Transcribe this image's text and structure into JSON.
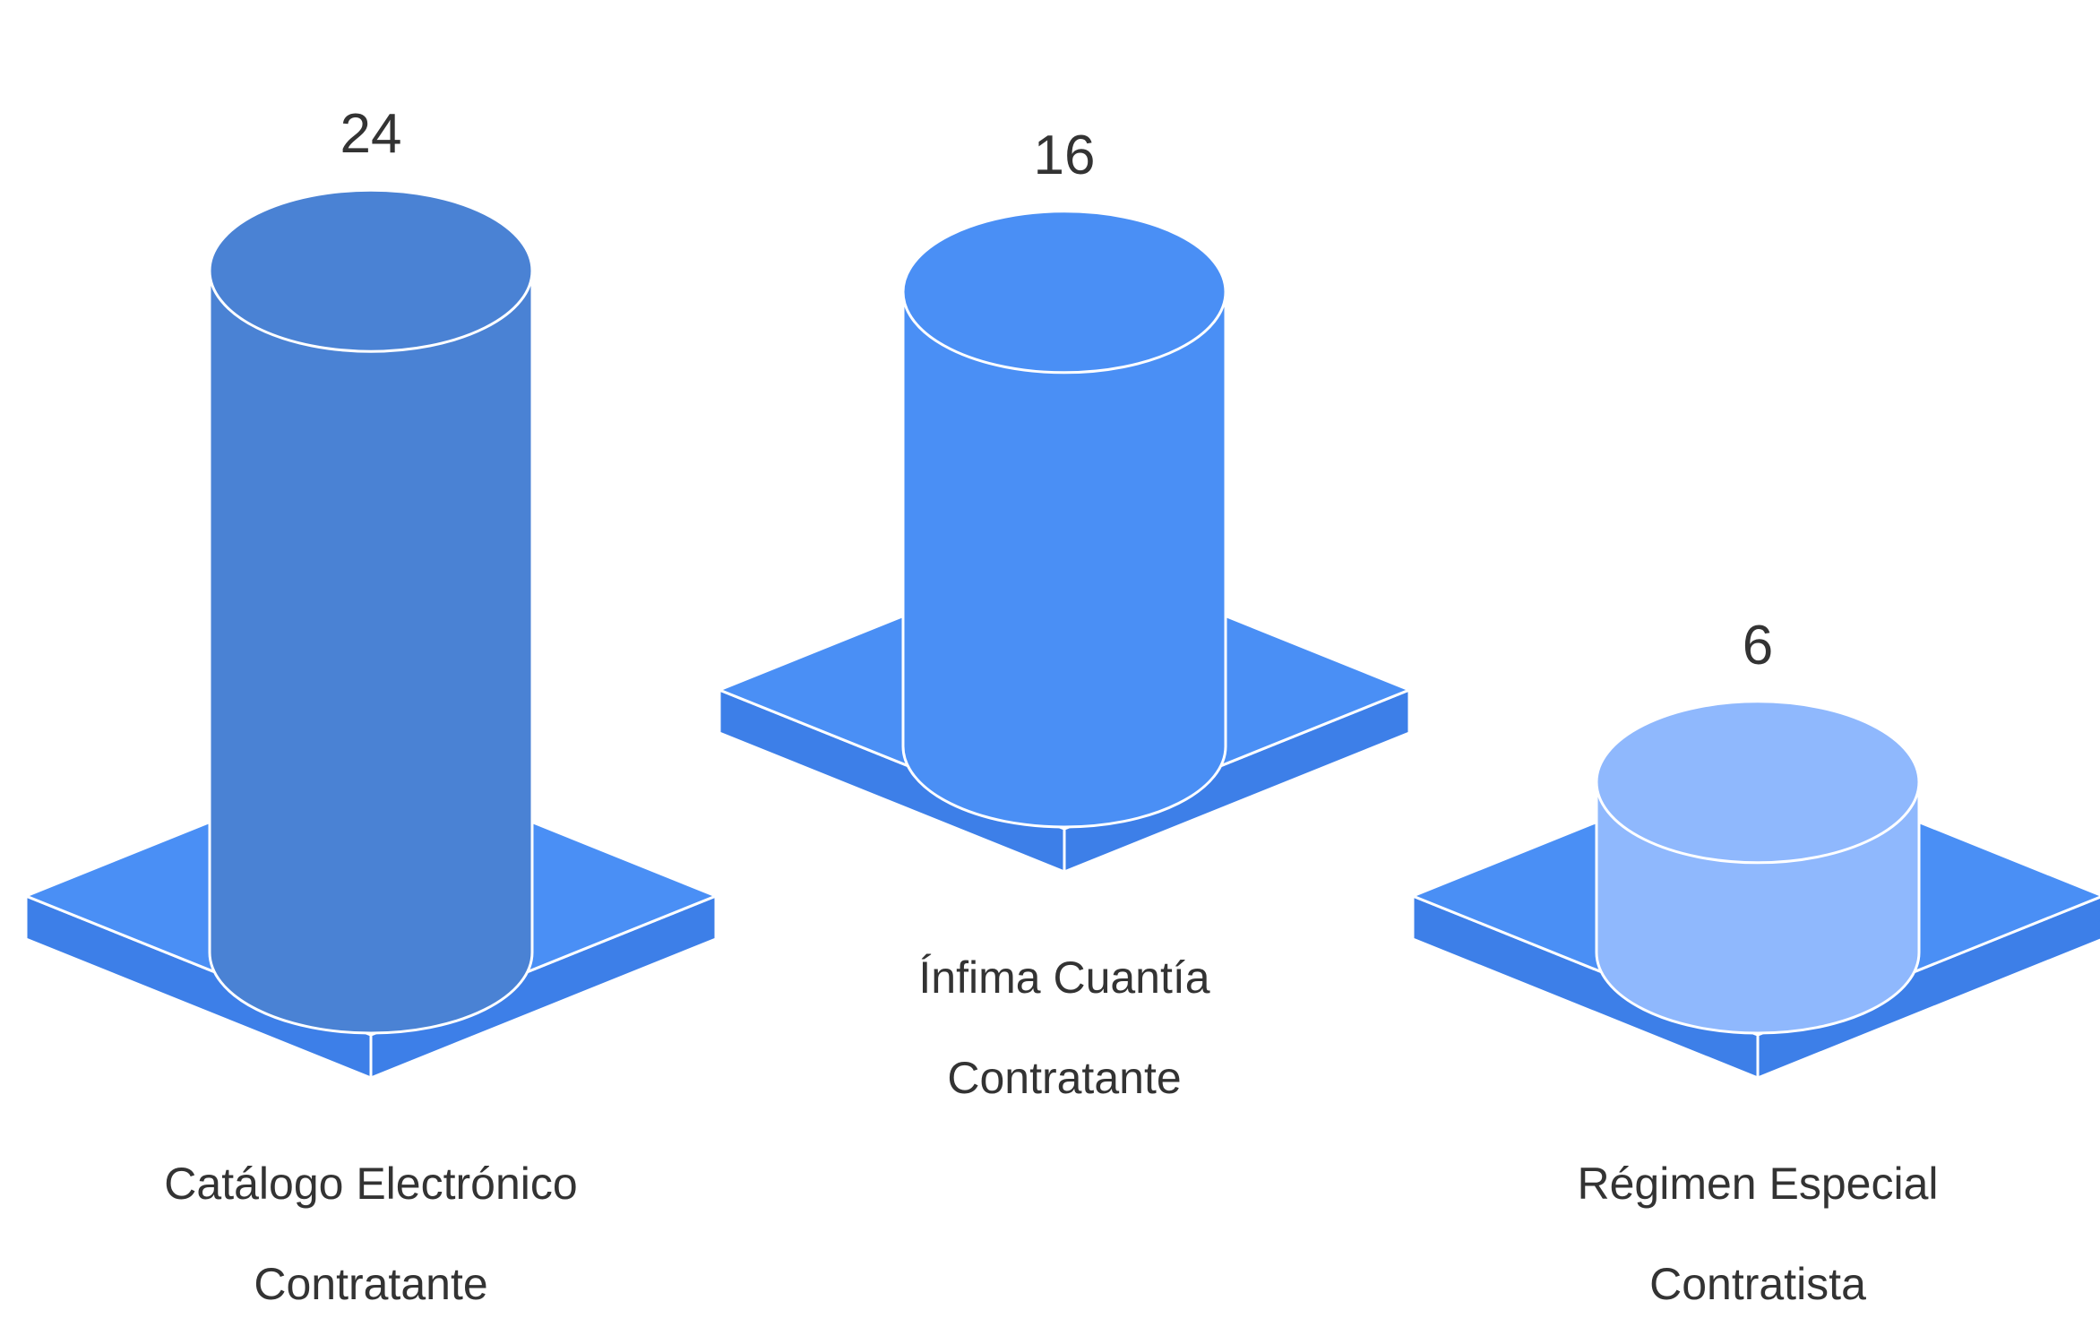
{
  "chart_data": {
    "type": "bar",
    "style": "3d-cylinders",
    "categories": [
      [
        "Catálogo Electrónico",
        "Contratante"
      ],
      [
        "Ínfima Cuantía",
        "Contratante"
      ],
      [
        "Régimen Especial",
        "Contratista"
      ]
    ],
    "values": [
      24,
      16,
      6
    ],
    "data_labels": [
      "24",
      "16",
      "6"
    ],
    "title": "",
    "xlabel": "",
    "ylabel": "",
    "legend": "none",
    "grid": false,
    "colors": {
      "base_top": "#4a8ff5",
      "base_side": "#3d7fe8",
      "bars": [
        "#4a82d4",
        "#4a8ff5",
        "#8fb8fd"
      ],
      "outline": "#ffffff",
      "text": "#333333"
    }
  }
}
